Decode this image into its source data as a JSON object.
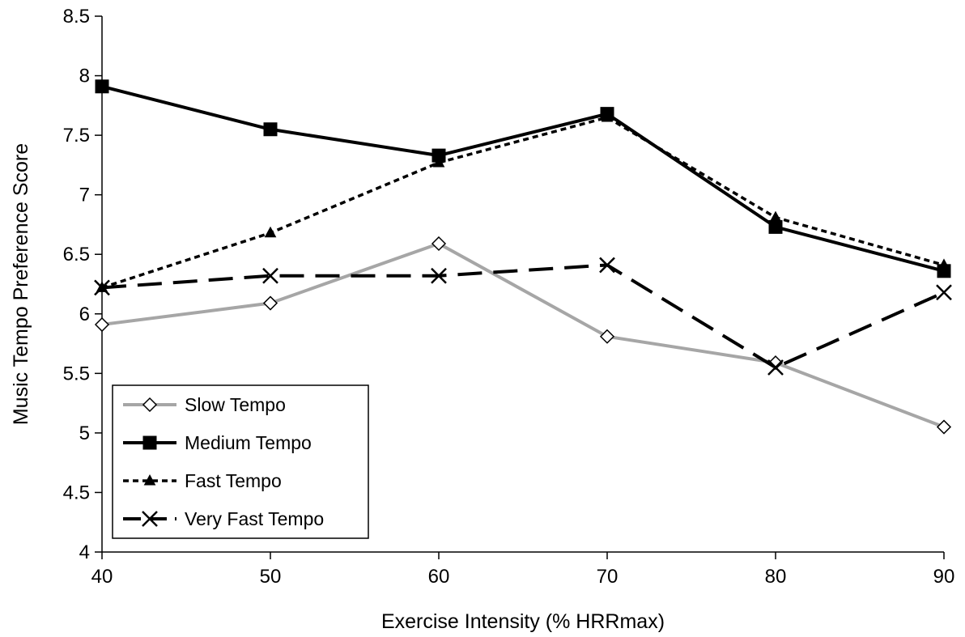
{
  "chart_data": {
    "type": "line",
    "title": "",
    "xlabel": "Exercise Intensity (% HRRmax)",
    "ylabel": "Music Tempo Preference Score",
    "x": [
      40,
      50,
      60,
      70,
      80,
      90
    ],
    "x_tick_labels": [
      "40",
      "50",
      "60",
      "70",
      "80",
      "90"
    ],
    "xlim": [
      40,
      90
    ],
    "ylim": [
      4,
      8.5
    ],
    "y_tick_labels": [
      "4",
      "4.5",
      "5",
      "5.5",
      "6",
      "6.5",
      "7",
      "7.5",
      "8",
      "8.5"
    ],
    "y_ticks": [
      4,
      4.5,
      5,
      5.5,
      6,
      6.5,
      7,
      7.5,
      8,
      8.5
    ],
    "grid": false,
    "legend_position": "bottom-left",
    "series": [
      {
        "name": "Slow Tempo",
        "values": [
          5.91,
          6.09,
          6.59,
          5.81,
          5.59,
          5.05
        ],
        "color": "#a6a6a6",
        "marker": "diamond-open",
        "line": "solid"
      },
      {
        "name": "Medium Tempo",
        "values": [
          7.91,
          7.55,
          7.33,
          7.68,
          6.73,
          6.36
        ],
        "color": "#000000",
        "marker": "square",
        "line": "solid"
      },
      {
        "name": "Fast Tempo",
        "values": [
          6.22,
          6.68,
          7.27,
          7.65,
          6.81,
          6.41
        ],
        "color": "#000000",
        "marker": "triangle",
        "line": "dotted"
      },
      {
        "name": "Very Fast Tempo",
        "values": [
          6.22,
          6.32,
          6.32,
          6.41,
          5.55,
          6.18
        ],
        "color": "#000000",
        "marker": "x",
        "line": "dashed"
      }
    ]
  }
}
